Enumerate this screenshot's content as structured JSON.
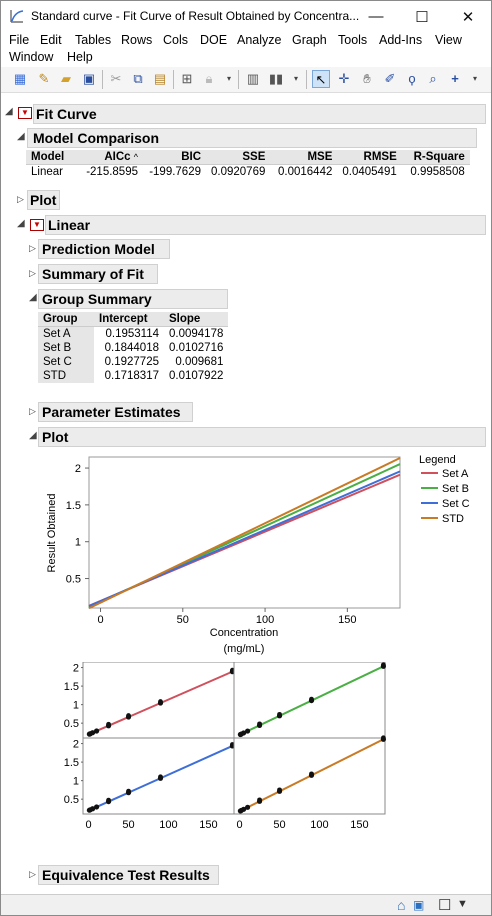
{
  "window": {
    "title": "Standard curve - Fit Curve of Result Obtained by Concentra...",
    "minimize": "—",
    "maximize": "☐",
    "close": "✕"
  },
  "menu": [
    "File",
    "Edit",
    "Tables",
    "Rows",
    "Cols",
    "DOE",
    "Analyze",
    "Graph",
    "Tools",
    "Add-Ins",
    "View",
    "Window",
    "Help"
  ],
  "report": {
    "fit_curve": "Fit Curve",
    "model_comparison": {
      "title": "Model Comparison",
      "headers": [
        "Model",
        "AICc",
        "BIC",
        "SSE",
        "MSE",
        "RMSE",
        "R-Square"
      ],
      "sort_marker": "^",
      "row": [
        "Linear",
        "-215.8595",
        "-199.7629",
        "0.0920769",
        "0.0016442",
        "0.0405491",
        "0.9958508"
      ]
    },
    "plot_top": "Plot",
    "linear": "Linear",
    "prediction_model": "Prediction Model",
    "summary_of_fit": "Summary of Fit",
    "group_summary": {
      "title": "Group Summary",
      "headers": [
        "Group",
        "Intercept",
        "Slope"
      ],
      "rows": [
        [
          "Set A",
          "0.1953114",
          "0.0094178"
        ],
        [
          "Set B",
          "0.1844018",
          "0.0102716"
        ],
        [
          "Set C",
          "0.1927725",
          "0.009681"
        ],
        [
          "STD",
          "0.1718317",
          "0.0107922"
        ]
      ]
    },
    "parameter_estimates": "Parameter Estimates",
    "plot": "Plot",
    "equivalence": "Equivalence Test Results"
  },
  "chart_data": [
    {
      "type": "line",
      "ylabel": "Result Obtained",
      "xlabel": "Concentration (mg/mL)",
      "xlabel_lines": [
        "Concentration",
        "(mg/mL)"
      ],
      "xlim": [
        -7,
        182
      ],
      "ylim": [
        0.1,
        2.15
      ],
      "xticks": [
        0,
        50,
        100,
        150
      ],
      "yticks": [
        0.5,
        1,
        1.5,
        2
      ],
      "legend_title": "Legend",
      "legend_position": "right",
      "series": [
        {
          "name": "Set A",
          "intercept": 0.1953114,
          "slope": 0.0094178,
          "color": "#d0505c"
        },
        {
          "name": "Set B",
          "intercept": 0.1844018,
          "slope": 0.0102716,
          "color": "#4aaf44"
        },
        {
          "name": "Set C",
          "intercept": 0.1927725,
          "slope": 0.009681,
          "color": "#3e6ed8"
        },
        {
          "name": "STD",
          "intercept": 0.1718317,
          "slope": 0.0107922,
          "color": "#c87a24"
        }
      ]
    },
    {
      "type": "scatter",
      "panels": [
        "Set A",
        "Set B",
        "Set C",
        "STD"
      ],
      "xticks": [
        0,
        50,
        100,
        150
      ],
      "yticks": [
        0.5,
        1,
        1.5,
        2
      ],
      "points_x": [
        1,
        2,
        5,
        10,
        25,
        50,
        90,
        180
      ],
      "xlim": [
        -7,
        182
      ],
      "ylim": [
        0.1,
        2.15
      ]
    }
  ],
  "status": {
    "home": "⌂",
    "icon2": "▣",
    "check": "☐",
    "dropdown": "▼"
  }
}
